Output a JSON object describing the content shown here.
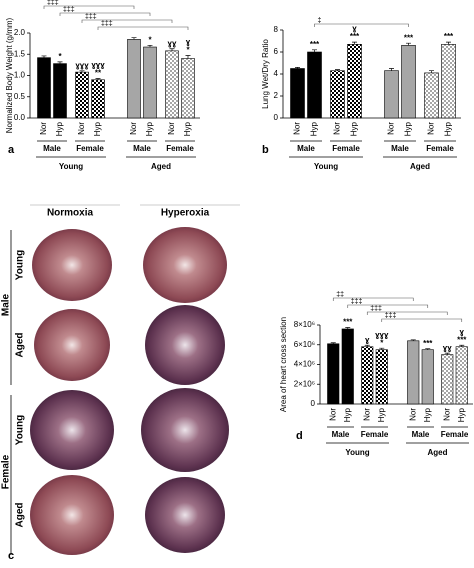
{
  "chart_data": [
    {
      "type": "bar",
      "panel": "a",
      "y_label": "Normalized Body Weight (g/mm)",
      "categories": [
        "Nor",
        "Hyp",
        "Nor",
        "Hyp",
        "Nor",
        "Hyp",
        "Nor",
        "Hyp"
      ],
      "sex_labels": [
        "Male",
        "Female",
        "Male",
        "Female"
      ],
      "age_labels": [
        "Young",
        "Aged"
      ],
      "values": [
        1.42,
        1.28,
        1.08,
        0.9,
        1.85,
        1.67,
        1.58,
        1.4
      ],
      "errors": [
        0.04,
        0.04,
        0.03,
        0.03,
        0.04,
        0.04,
        0.05,
        0.07
      ],
      "colors": [
        "#000000",
        "#000000",
        "#000000",
        "#000000",
        "#a6a6a6",
        "#a6a6a6",
        "#a6a6a6",
        "#a6a6a6"
      ],
      "patterned": [
        false,
        false,
        true,
        true,
        false,
        false,
        true,
        true
      ],
      "annotations": [
        null,
        [
          "*"
        ],
        [
          "ɣɣɣ"
        ],
        [
          "ɣɣɣ",
          "**"
        ],
        null,
        [
          "*"
        ],
        [
          "ɣɣ"
        ],
        [
          "ɣ",
          "*"
        ]
      ],
      "comparison_labels": [
        "‡‡‡",
        "‡‡‡",
        "‡‡‡",
        "‡‡‡"
      ],
      "ylim": [
        0,
        2.0
      ],
      "yticks": [
        {
          "value": 0,
          "label": "0.0"
        },
        0.5,
        {
          "value": 1,
          "label": "1.0"
        },
        1.5,
        {
          "value": 2,
          "label": "2.0"
        }
      ]
    },
    {
      "type": "bar",
      "panel": "b",
      "y_label": "Lung Wet/Dry Ratio",
      "categories": [
        "Nor",
        "Hyp",
        "Nor",
        "Hyp",
        "Nor",
        "Hyp",
        "Nor",
        "Hyp"
      ],
      "sex_labels": [
        "Male",
        "Female",
        "Male",
        "Female"
      ],
      "age_labels": [
        "Young",
        "Aged"
      ],
      "values": [
        4.5,
        6.0,
        4.3,
        6.7,
        4.3,
        6.6,
        4.1,
        6.7
      ],
      "errors": [
        0.1,
        0.2,
        0.1,
        0.2,
        0.2,
        0.2,
        0.2,
        0.2
      ],
      "colors": [
        "#000000",
        "#000000",
        "#000000",
        "#000000",
        "#a6a6a6",
        "#a6a6a6",
        "#a6a6a6",
        "#a6a6a6"
      ],
      "patterned": [
        false,
        false,
        true,
        true,
        false,
        false,
        true,
        true
      ],
      "annotations": [
        null,
        [
          "***"
        ],
        null,
        [
          "ɣ",
          "***"
        ],
        null,
        [
          "***"
        ],
        null,
        [
          "***"
        ]
      ],
      "comparison_labels": [
        "‡"
      ],
      "ylim": [
        0,
        8
      ],
      "yticks": [
        0,
        2,
        4,
        6,
        8
      ]
    },
    {
      "type": "bar",
      "panel": "d",
      "y_label": "Area of heart cross section",
      "categories": [
        "Nor",
        "Hyp",
        "Nor",
        "Hyp",
        "Nor",
        "Hyp",
        "Nor",
        "Hyp"
      ],
      "sex_labels": [
        "Male",
        "Female",
        "Male",
        "Female"
      ],
      "age_labels": [
        "Young",
        "Aged"
      ],
      "values": [
        6100000,
        7600000,
        5800000,
        5500000,
        6400000,
        5500000,
        5000000,
        5800000
      ],
      "errors": [
        100000,
        150000,
        150000,
        150000,
        100000,
        100000,
        150000,
        150000
      ],
      "colors": [
        "#000000",
        "#000000",
        "#000000",
        "#000000",
        "#a6a6a6",
        "#a6a6a6",
        "#a6a6a6",
        "#a6a6a6"
      ],
      "patterned": [
        false,
        false,
        true,
        true,
        false,
        false,
        true,
        true
      ],
      "annotations": [
        null,
        [
          "***"
        ],
        [
          "ɣ"
        ],
        [
          "ɣɣɣ",
          "*"
        ],
        null,
        [
          "***"
        ],
        [
          "ɣɣ"
        ],
        [
          "ɣ",
          "***"
        ]
      ],
      "comparison_labels": [
        "‡‡",
        "‡‡‡",
        "‡‡‡",
        "‡‡‡"
      ],
      "ylim": [
        0,
        8000000
      ],
      "yticks": [
        0,
        {
          "value": 2000000,
          "label": "2×10⁶"
        },
        {
          "value": 4000000,
          "label": "4×10⁶"
        },
        {
          "value": 6000000,
          "label": "6×10⁶"
        },
        {
          "value": 8000000,
          "label": "8×10⁶"
        }
      ]
    }
  ],
  "histology": {
    "panel": "c",
    "columns": [
      "Normoxia",
      "Hyperoxia"
    ],
    "sexes": [
      "Male",
      "Female"
    ],
    "rows": [
      "Young",
      "Aged",
      "Young",
      "Aged"
    ]
  }
}
